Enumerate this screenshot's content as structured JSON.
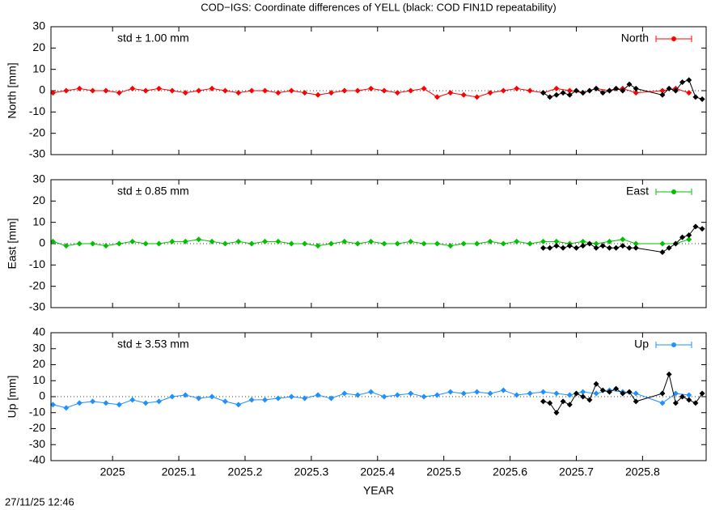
{
  "title": "COD−IGS: Coordinate differences of YELL (black: COD FIN1D repeatability)",
  "timestamp": "27/11/25 12:46",
  "chart_data": [
    {
      "type": "line",
      "ylabel": "North [mm]",
      "annotation": "std ± 1.00 mm",
      "annotation_color": "#ff0000",
      "xlim": [
        2024.907,
        2025.896
      ],
      "xticks": [
        2025,
        2025.1,
        2025.2,
        2025.3,
        2025.4,
        2025.5,
        2025.6,
        2025.7,
        2025.8
      ],
      "ylim": [
        -30,
        30
      ],
      "yticks": [
        -30,
        -20,
        -10,
        0,
        10,
        20,
        30
      ],
      "series": [
        {
          "name": "North",
          "color": "#ff0000",
          "x": [
            2024.91,
            2024.93,
            2024.95,
            2024.97,
            2024.99,
            2025.01,
            2025.03,
            2025.05,
            2025.07,
            2025.09,
            2025.11,
            2025.13,
            2025.15,
            2025.17,
            2025.19,
            2025.21,
            2025.23,
            2025.25,
            2025.27,
            2025.29,
            2025.31,
            2025.33,
            2025.35,
            2025.37,
            2025.39,
            2025.41,
            2025.43,
            2025.45,
            2025.47,
            2025.49,
            2025.51,
            2025.53,
            2025.55,
            2025.57,
            2025.59,
            2025.61,
            2025.63,
            2025.65,
            2025.67,
            2025.69,
            2025.71,
            2025.73,
            2025.75,
            2025.77,
            2025.79,
            2025.83,
            2025.85,
            2025.87
          ],
          "values": [
            -1,
            0,
            1,
            0,
            0,
            -1,
            1,
            0,
            1,
            0,
            -1,
            0,
            1,
            0,
            -1,
            0,
            0,
            -1,
            0,
            -1,
            -2,
            -1,
            0,
            0,
            1,
            0,
            -1,
            0,
            1,
            -3,
            -1,
            -2,
            -3,
            -1,
            0,
            1,
            0,
            -1,
            1,
            0,
            -1,
            1,
            0,
            1,
            -1,
            0,
            1,
            -1
          ]
        },
        {
          "color": "#000000",
          "x": [
            2025.65,
            2025.66,
            2025.67,
            2025.68,
            2025.69,
            2025.7,
            2025.71,
            2025.72,
            2025.73,
            2025.74,
            2025.75,
            2025.76,
            2025.77,
            2025.78,
            2025.79,
            2025.83,
            2025.84,
            2025.85,
            2025.86,
            2025.87,
            2025.88,
            2025.89
          ],
          "values": [
            -1,
            -3,
            -2,
            -1,
            -2,
            0,
            -1,
            0,
            1,
            -1,
            0,
            1,
            0,
            3,
            1,
            -2,
            1,
            0,
            4,
            5,
            -3,
            -4
          ]
        }
      ]
    },
    {
      "type": "line",
      "ylabel": "East [mm]",
      "annotation": "std ± 0.85 mm",
      "annotation_color": "#00c000",
      "xlim": [
        2024.907,
        2025.896
      ],
      "xticks": [
        2025,
        2025.1,
        2025.2,
        2025.3,
        2025.4,
        2025.5,
        2025.6,
        2025.7,
        2025.8
      ],
      "ylim": [
        -30,
        30
      ],
      "yticks": [
        -30,
        -20,
        -10,
        0,
        10,
        20,
        30
      ],
      "series": [
        {
          "name": "East",
          "color": "#00c000",
          "x": [
            2024.91,
            2024.93,
            2024.95,
            2024.97,
            2024.99,
            2025.01,
            2025.03,
            2025.05,
            2025.07,
            2025.09,
            2025.11,
            2025.13,
            2025.15,
            2025.17,
            2025.19,
            2025.21,
            2025.23,
            2025.25,
            2025.27,
            2025.29,
            2025.31,
            2025.33,
            2025.35,
            2025.37,
            2025.39,
            2025.41,
            2025.43,
            2025.45,
            2025.47,
            2025.49,
            2025.51,
            2025.53,
            2025.55,
            2025.57,
            2025.59,
            2025.61,
            2025.63,
            2025.65,
            2025.67,
            2025.69,
            2025.71,
            2025.73,
            2025.75,
            2025.77,
            2025.79,
            2025.83,
            2025.85,
            2025.87
          ],
          "values": [
            1,
            -1,
            0,
            0,
            -1,
            0,
            1,
            0,
            0,
            1,
            1,
            2,
            1,
            0,
            1,
            0,
            1,
            1,
            0,
            0,
            -1,
            0,
            1,
            0,
            1,
            0,
            0,
            1,
            0,
            0,
            -1,
            0,
            0,
            1,
            0,
            1,
            0,
            1,
            1,
            0,
            1,
            0,
            1,
            2,
            0,
            0,
            0,
            2
          ]
        },
        {
          "color": "#000000",
          "x": [
            2025.65,
            2025.66,
            2025.67,
            2025.68,
            2025.69,
            2025.7,
            2025.71,
            2025.72,
            2025.73,
            2025.74,
            2025.75,
            2025.76,
            2025.77,
            2025.78,
            2025.79,
            2025.83,
            2025.84,
            2025.85,
            2025.86,
            2025.87,
            2025.88,
            2025.89
          ],
          "values": [
            -2,
            -2,
            -1,
            -2,
            -1,
            -2,
            -1,
            0,
            -2,
            -1,
            -2,
            -2,
            -1,
            -2,
            -2,
            -4,
            -2,
            0,
            3,
            4,
            8,
            7
          ]
        }
      ]
    },
    {
      "type": "line",
      "ylabel": "Up [mm]",
      "annotation": "std ± 3.53 mm",
      "annotation_color": "#1e90ff",
      "xlabel": "YEAR",
      "xlim": [
        2024.907,
        2025.896
      ],
      "xticks": [
        2025,
        2025.1,
        2025.2,
        2025.3,
        2025.4,
        2025.5,
        2025.6,
        2025.7,
        2025.8
      ],
      "ylim": [
        -40,
        40
      ],
      "yticks": [
        -40,
        -30,
        -20,
        -10,
        0,
        10,
        20,
        30,
        40
      ],
      "series": [
        {
          "name": "Up",
          "color": "#1e90ff",
          "x": [
            2024.91,
            2024.93,
            2024.95,
            2024.97,
            2024.99,
            2025.01,
            2025.03,
            2025.05,
            2025.07,
            2025.09,
            2025.11,
            2025.13,
            2025.15,
            2025.17,
            2025.19,
            2025.21,
            2025.23,
            2025.25,
            2025.27,
            2025.29,
            2025.31,
            2025.33,
            2025.35,
            2025.37,
            2025.39,
            2025.41,
            2025.43,
            2025.45,
            2025.47,
            2025.49,
            2025.51,
            2025.53,
            2025.55,
            2025.57,
            2025.59,
            2025.61,
            2025.63,
            2025.65,
            2025.67,
            2025.69,
            2025.71,
            2025.73,
            2025.75,
            2025.77,
            2025.79,
            2025.83,
            2025.85,
            2025.87
          ],
          "values": [
            -5,
            -7,
            -4,
            -3,
            -4,
            -5,
            -2,
            -4,
            -3,
            0,
            1,
            -1,
            0,
            -3,
            -5,
            -2,
            -2,
            -1,
            0,
            -1,
            1,
            -1,
            2,
            1,
            3,
            0,
            1,
            2,
            0,
            1,
            3,
            2,
            3,
            2,
            4,
            1,
            2,
            3,
            2,
            1,
            3,
            2,
            4,
            3,
            2,
            -4,
            2,
            1
          ]
        },
        {
          "color": "#000000",
          "x": [
            2025.65,
            2025.66,
            2025.67,
            2025.68,
            2025.69,
            2025.7,
            2025.71,
            2025.72,
            2025.73,
            2025.74,
            2025.75,
            2025.76,
            2025.77,
            2025.78,
            2025.79,
            2025.83,
            2025.84,
            2025.85,
            2025.86,
            2025.87,
            2025.88,
            2025.89
          ],
          "values": [
            -3,
            -4,
            -10,
            -3,
            -5,
            2,
            0,
            -2,
            8,
            4,
            3,
            5,
            2,
            3,
            -3,
            2,
            14,
            -4,
            0,
            -2,
            -4,
            2
          ]
        }
      ]
    }
  ]
}
